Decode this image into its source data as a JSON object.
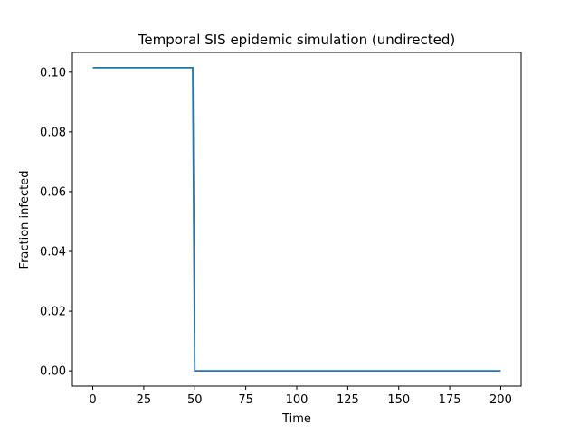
{
  "chart_data": {
    "type": "line",
    "title": "Temporal SIS epidemic simulation (undirected)",
    "xlabel": "Time",
    "ylabel": "Fraction infected",
    "xlim": [
      -10,
      210
    ],
    "ylim": [
      -0.0051,
      0.1066
    ],
    "xticks": [
      0,
      25,
      50,
      75,
      100,
      125,
      150,
      175,
      200
    ],
    "xtick_labels": [
      "0",
      "25",
      "50",
      "75",
      "100",
      "125",
      "150",
      "175",
      "200"
    ],
    "yticks": [
      0.0,
      0.02,
      0.04,
      0.06,
      0.08,
      0.1
    ],
    "ytick_labels": [
      "0.00",
      "0.02",
      "0.04",
      "0.06",
      "0.08",
      "0.10"
    ],
    "grid": false,
    "series": [
      {
        "color": "#1f77b4",
        "x": [
          0,
          49,
          50,
          200
        ],
        "y": [
          0.1015,
          0.1015,
          0.0,
          0.0
        ]
      }
    ]
  }
}
